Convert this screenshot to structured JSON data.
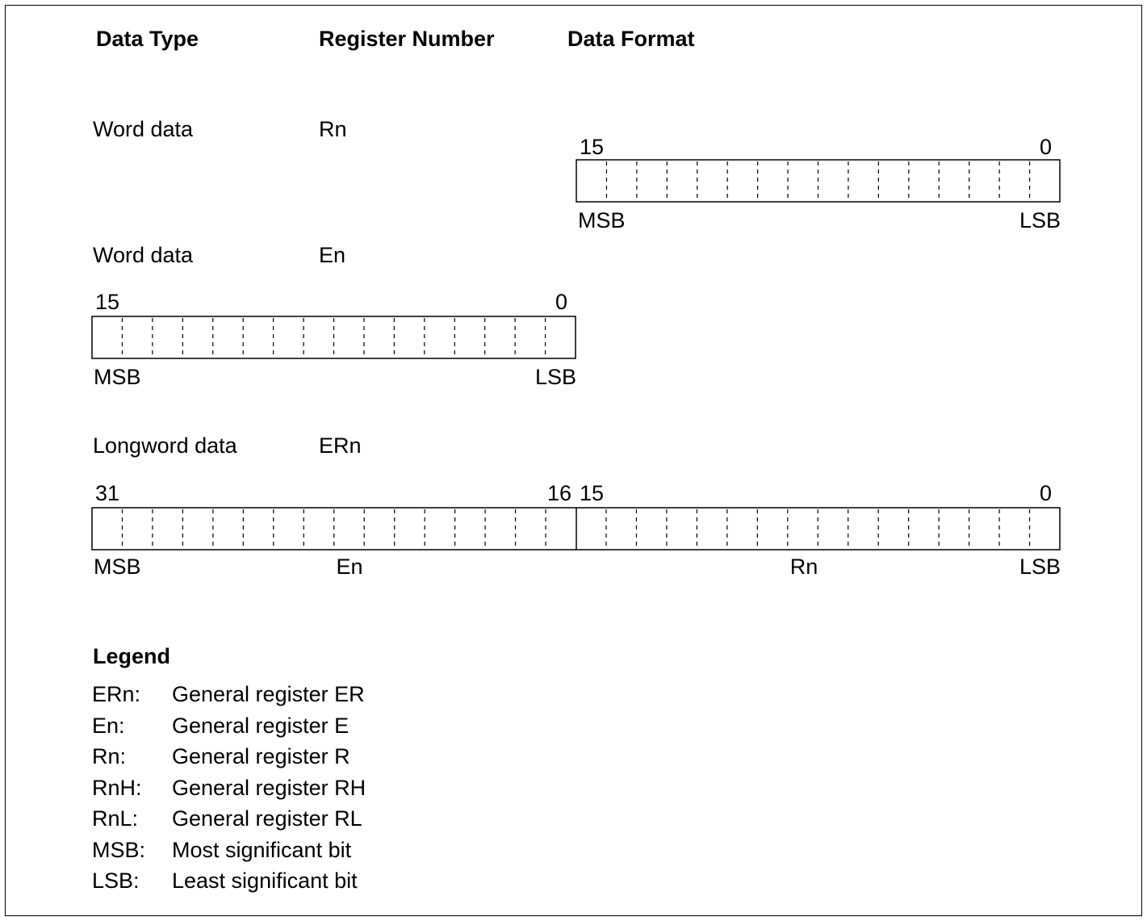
{
  "headers": {
    "data_type": "Data Type",
    "register_number": "Register Number",
    "data_format": "Data Format"
  },
  "rows": [
    {
      "type": "Word data",
      "register": "Rn",
      "hi_bit": "15",
      "lo_bit": "0",
      "msb": "MSB",
      "lsb": "LSB"
    },
    {
      "type": "Word data",
      "register": "En",
      "hi_bit": "15",
      "lo_bit": "0",
      "msb": "MSB",
      "lsb": "LSB"
    },
    {
      "type": "Longword data",
      "register": "ERn",
      "bit31": "31",
      "bit16": "16",
      "bit15": "15",
      "bit0": "0",
      "msb": "MSB",
      "lsb": "LSB",
      "upper_label": "En",
      "lower_label": "Rn"
    }
  ],
  "legend": {
    "title": "Legend",
    "items": [
      {
        "key": "ERn:",
        "desc": "General register ER"
      },
      {
        "key": "En:",
        "desc": "General register E"
      },
      {
        "key": "Rn:",
        "desc": "General register R"
      },
      {
        "key": "RnH:",
        "desc": "General register RH"
      },
      {
        "key": "RnL:",
        "desc": "General register RL"
      },
      {
        "key": "MSB:",
        "desc": "Most significant bit"
      },
      {
        "key": "LSB:",
        "desc": "Least significant bit"
      }
    ]
  }
}
